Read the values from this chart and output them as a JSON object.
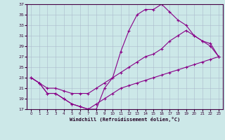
{
  "xlabel": "Windchill (Refroidissement éolien,°C)",
  "bg_color": "#cce8e8",
  "line_color": "#880088",
  "grid_color": "#aabbcc",
  "xlim": [
    -0.5,
    23.5
  ],
  "ylim": [
    17,
    37
  ],
  "xticks": [
    0,
    1,
    2,
    3,
    4,
    5,
    6,
    7,
    8,
    9,
    10,
    11,
    12,
    13,
    14,
    15,
    16,
    17,
    18,
    19,
    20,
    21,
    22,
    23
  ],
  "yticks": [
    17,
    19,
    21,
    23,
    25,
    27,
    29,
    31,
    33,
    35,
    37
  ],
  "series": [
    {
      "x": [
        0,
        1,
        2,
        3,
        4,
        5,
        6,
        7,
        8,
        9,
        10,
        11,
        12,
        13,
        14,
        15,
        16,
        17,
        18,
        19,
        20,
        21,
        22,
        23
      ],
      "y": [
        23,
        22,
        20,
        20,
        19,
        18,
        17.5,
        17,
        17,
        21,
        23,
        28,
        32,
        35,
        36,
        36,
        37,
        35.5,
        34,
        33,
        31,
        30,
        29.5,
        27
      ]
    },
    {
      "x": [
        0,
        1,
        2,
        3,
        4,
        5,
        6,
        7,
        8,
        9,
        10,
        11,
        12,
        13,
        14,
        15,
        16,
        17,
        18,
        19,
        20,
        21,
        22,
        23
      ],
      "y": [
        23,
        22,
        21,
        21,
        20.5,
        20,
        20,
        20,
        21,
        22,
        23,
        24,
        25,
        26,
        27,
        27.5,
        28.5,
        30,
        31,
        32,
        31,
        30,
        29,
        27
      ]
    },
    {
      "x": [
        0,
        1,
        2,
        3,
        4,
        5,
        6,
        7,
        8,
        9,
        10,
        11,
        12,
        13,
        14,
        15,
        16,
        17,
        18,
        19,
        20,
        21,
        22,
        23
      ],
      "y": [
        23,
        22,
        20,
        20,
        19,
        18,
        17.5,
        17,
        18,
        19,
        20,
        21,
        21.5,
        22,
        22.5,
        23,
        23.5,
        24,
        24.5,
        25,
        25.5,
        26,
        26.5,
        27
      ]
    }
  ]
}
